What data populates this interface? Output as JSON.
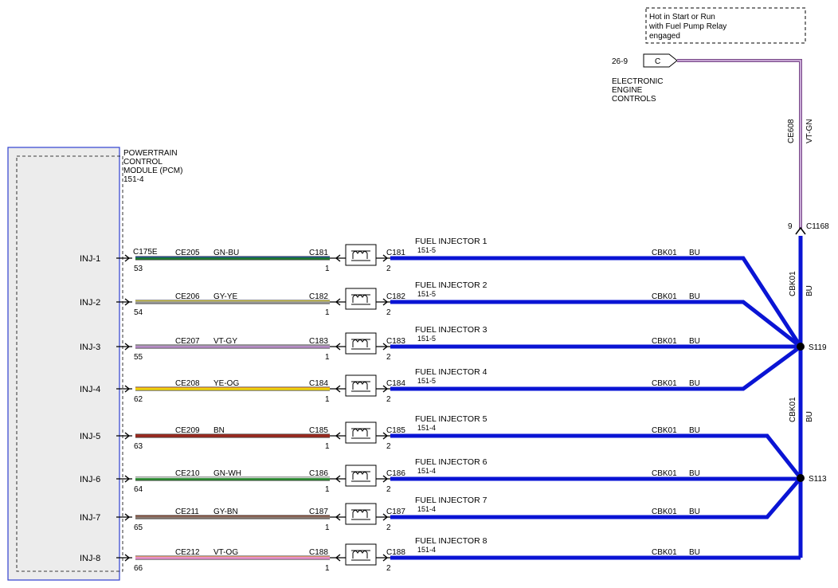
{
  "power_note": {
    "lines": [
      "Hot in Start or Run",
      "with Fuel Pump Relay",
      "engaged"
    ]
  },
  "source": {
    "ref": "26-9",
    "letter": "C",
    "label_lines": [
      "ELECTRONIC",
      "ENGINE",
      "CONTROLS"
    ]
  },
  "feed_wire": {
    "circuit": "CE608",
    "color_code": "VT-GN",
    "color": "#b48cc8"
  },
  "connector_c1168": {
    "pin": "9",
    "name": "C1168"
  },
  "bus_upper": {
    "circuit": "CBK01",
    "color_code": "BU",
    "splice": "S119"
  },
  "bus_lower": {
    "circuit": "CBK01",
    "color_code": "BU",
    "splice": "S113"
  },
  "pcm": {
    "label_lines": [
      "POWERTRAIN",
      "CONTROL",
      "MODULE (PCM)",
      "151-4"
    ],
    "connector": "C175E"
  },
  "channels": [
    {
      "signal": "INJ-1",
      "pcm_pin": "53",
      "circuit": "CE205",
      "color_code": "GN-BU",
      "wire_color": "#1e7a2e",
      "stripe_color": "#2040c0",
      "conn": "C181",
      "conn_pin": "1",
      "inj_conn": "C181",
      "inj_pin": "2",
      "name": "FUEL INJECTOR 1",
      "ref": "151-5",
      "out_circuit": "CBK01",
      "out_color_code": "BU"
    },
    {
      "signal": "INJ-2",
      "pcm_pin": "54",
      "circuit": "CE206",
      "color_code": "GY-YE",
      "wire_color": "#9a9a9a",
      "stripe_color": "#e8d820",
      "conn": "C182",
      "conn_pin": "1",
      "inj_conn": "C182",
      "inj_pin": "2",
      "name": "FUEL INJECTOR 2",
      "ref": "151-5",
      "out_circuit": "CBK01",
      "out_color_code": "BU"
    },
    {
      "signal": "INJ-3",
      "pcm_pin": "55",
      "circuit": "CE207",
      "color_code": "VT-GY",
      "wire_color": "#b88cc8",
      "stripe_color": "#9a9a9a",
      "conn": "C183",
      "conn_pin": "1",
      "inj_conn": "C183",
      "inj_pin": "2",
      "name": "FUEL INJECTOR 3",
      "ref": "151-5",
      "out_circuit": "CBK01",
      "out_color_code": "BU"
    },
    {
      "signal": "INJ-4",
      "pcm_pin": "62",
      "circuit": "CE208",
      "color_code": "YE-OG",
      "wire_color": "#f0d810",
      "stripe_color": "#f09020",
      "conn": "C184",
      "conn_pin": "1",
      "inj_conn": "C184",
      "inj_pin": "2",
      "name": "FUEL INJECTOR 4",
      "ref": "151-5",
      "out_circuit": "CBK01",
      "out_color_code": "BU"
    },
    {
      "signal": "INJ-5",
      "pcm_pin": "63",
      "circuit": "CE209",
      "color_code": "BN",
      "wire_color": "#9a2a20",
      "stripe_color": "#9a2a20",
      "conn": "C185",
      "conn_pin": "1",
      "inj_conn": "C185",
      "inj_pin": "2",
      "name": "FUEL INJECTOR 5",
      "ref": "151-4",
      "out_circuit": "CBK01",
      "out_color_code": "BU"
    },
    {
      "signal": "INJ-6",
      "pcm_pin": "64",
      "circuit": "CE210",
      "color_code": "GN-WH",
      "wire_color": "#2a8a30",
      "stripe_color": "#ffffff",
      "conn": "C186",
      "conn_pin": "1",
      "inj_conn": "C186",
      "inj_pin": "2",
      "name": "FUEL INJECTOR 6",
      "ref": "151-4",
      "out_circuit": "CBK01",
      "out_color_code": "BU"
    },
    {
      "signal": "INJ-7",
      "pcm_pin": "65",
      "circuit": "CE211",
      "color_code": "GY-BN",
      "wire_color": "#8a7a72",
      "stripe_color": "#8a3a20",
      "conn": "C187",
      "conn_pin": "1",
      "inj_conn": "C187",
      "inj_pin": "2",
      "name": "FUEL INJECTOR 7",
      "ref": "151-4",
      "out_circuit": "CBK01",
      "out_color_code": "BU"
    },
    {
      "signal": "INJ-8",
      "pcm_pin": "66",
      "circuit": "CE212",
      "color_code": "VT-OG",
      "wire_color": "#e890d0",
      "stripe_color": "#f0a060",
      "conn": "C188",
      "conn_pin": "1",
      "inj_conn": "C188",
      "inj_pin": "2",
      "name": "FUEL INJECTOR 8",
      "ref": "151-4",
      "out_circuit": "CBK01",
      "out_color_code": "BU"
    }
  ],
  "colors": {
    "bus_blue": "#0a14d4",
    "module_border": "#3040d0",
    "module_fill": "#ececec"
  }
}
